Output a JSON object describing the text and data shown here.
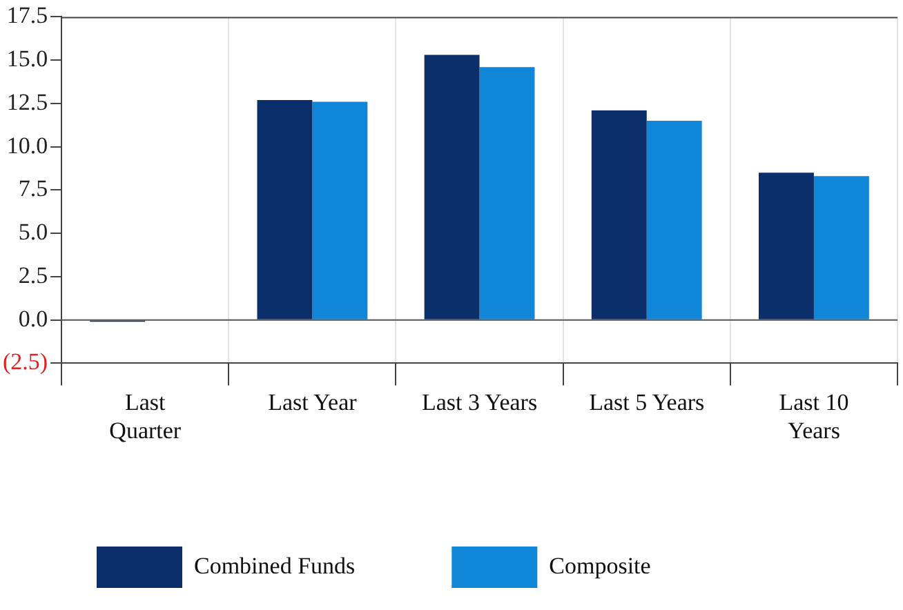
{
  "chart_data": {
    "type": "bar",
    "categories": [
      "Last Quarter",
      "Last Year",
      "Last 3 Years",
      "Last 5 Years",
      "Last 10 Years"
    ],
    "series": [
      {
        "name": "Combined Funds",
        "color": "#0a2f6b",
        "values": [
          -0.1,
          12.7,
          15.3,
          12.1,
          8.5
        ]
      },
      {
        "name": "Composite",
        "color": "#0f86d8",
        "values": [
          0.0,
          12.6,
          14.6,
          11.5,
          8.3
        ]
      }
    ],
    "ylim": [
      -2.5,
      17.5
    ],
    "yticks": [
      {
        "value": -2.5,
        "label": "(2.5)"
      },
      {
        "value": 0,
        "label": "0.0"
      },
      {
        "value": 2.5,
        "label": "2.5"
      },
      {
        "value": 5,
        "label": "5.0"
      },
      {
        "value": 7.5,
        "label": "7.5"
      },
      {
        "value": 10,
        "label": "10.0"
      },
      {
        "value": 12.5,
        "label": "12.5"
      },
      {
        "value": 15,
        "label": "15.0"
      },
      {
        "value": 17.5,
        "label": "17.5"
      }
    ],
    "ref_lines": [
      {
        "axis": "y",
        "value": 0,
        "color": "#555555"
      }
    ],
    "grid": "x",
    "legend": "bottom"
  }
}
